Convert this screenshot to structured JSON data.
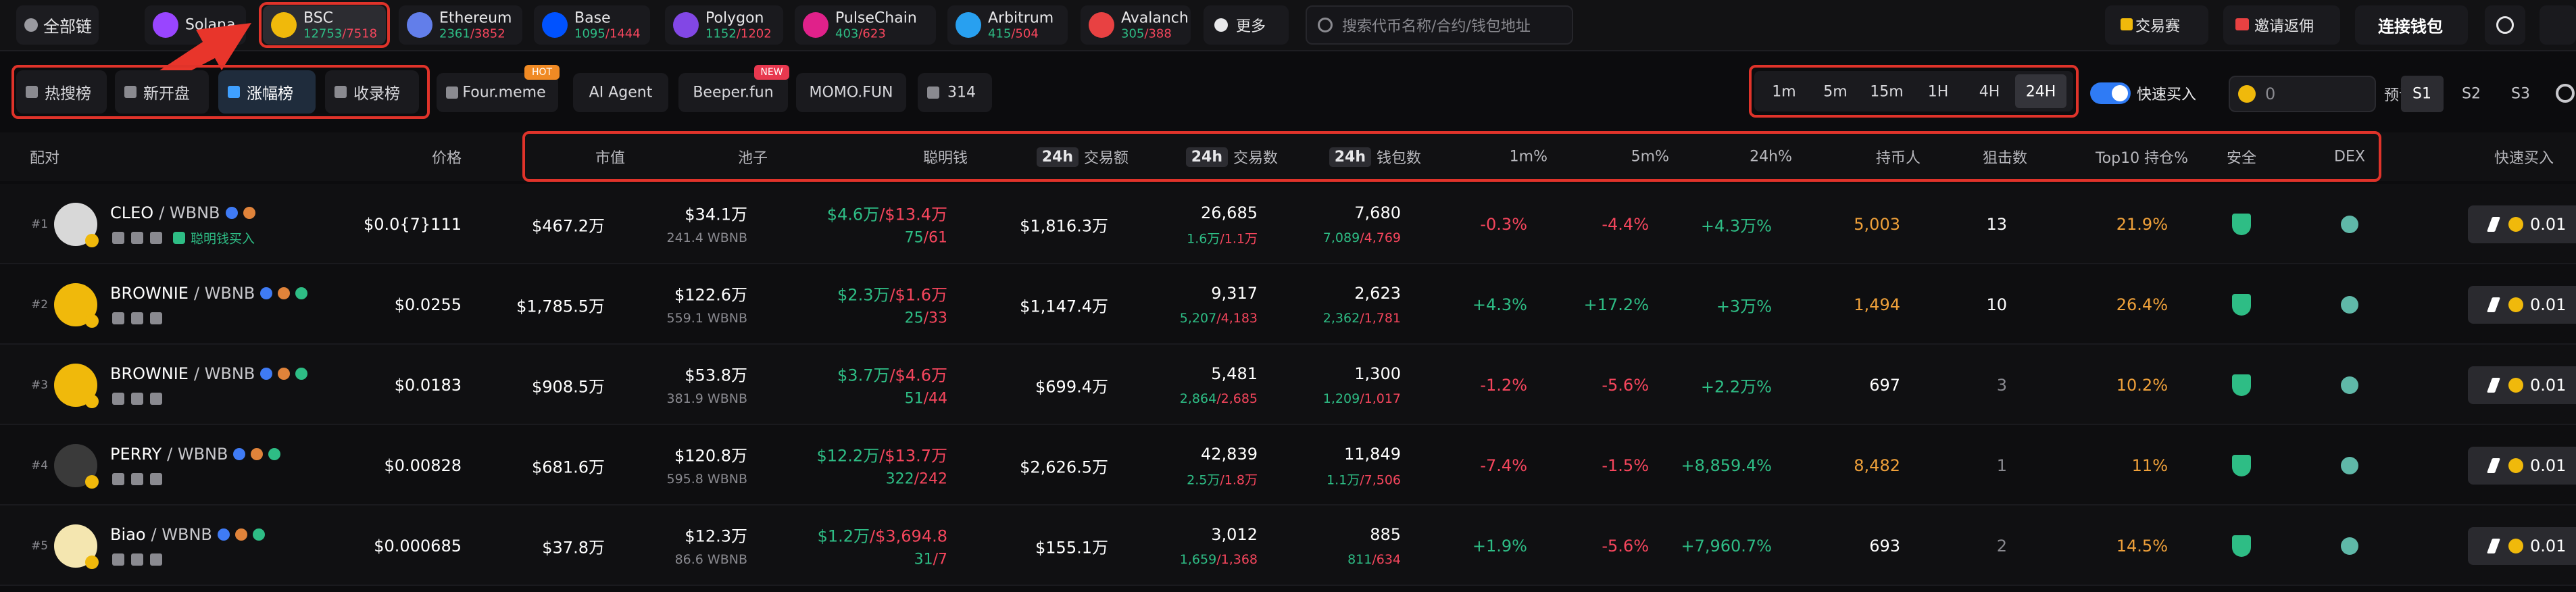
{
  "top_bar": {
    "all_chains": "全部链",
    "chains": [
      {
        "name": "Solana"
      },
      {
        "name": "BSC",
        "up": "12753",
        "down": "/7518"
      },
      {
        "name": "Ethereum",
        "up": "2361",
        "down": "/3852"
      },
      {
        "name": "Base",
        "up": "1095",
        "down": "/1444"
      },
      {
        "name": "Polygon",
        "up": "1152",
        "down": "/1202"
      },
      {
        "name": "PulseChain",
        "up": "403",
        "down": "/623"
      },
      {
        "name": "Arbitrum",
        "up": "415",
        "down": "/504"
      },
      {
        "name": "Avalanch",
        "up": "305",
        "down": "/388"
      }
    ],
    "more": "更多",
    "search_placeholder": "搜索代币名称/合约/钱包地址",
    "contest": "交易赛",
    "invite": "邀请返佣",
    "connect": "连接钱包"
  },
  "filter_bar": {
    "tabs": [
      "热搜榜",
      "新开盘",
      "涨幅榜",
      "收录榜"
    ],
    "platforms": [
      {
        "label": "Four.meme",
        "badge": "HOT"
      },
      {
        "label": "AI Agent"
      },
      {
        "label": "Beeper.fun",
        "badge": "NEW"
      },
      {
        "label": "MOMO.FUN"
      },
      {
        "label": "314"
      }
    ],
    "timeframes": [
      "1m",
      "5m",
      "15m",
      "1H",
      "4H",
      "24H"
    ],
    "quick_buy": "快速买入",
    "amount": "0",
    "preset": "预设",
    "presets": [
      "S1",
      "S2",
      "S3"
    ]
  },
  "table": {
    "headers": [
      {
        "text": "配对"
      },
      {
        "text": "价格"
      },
      {
        "text": "市值"
      },
      {
        "text": "池子"
      },
      {
        "text": "聪明钱"
      },
      {
        "badge": "24h",
        "text": "交易额"
      },
      {
        "badge": "24h",
        "text": "交易数"
      },
      {
        "badge": "24h",
        "text": "钱包数"
      },
      {
        "text": "1m%"
      },
      {
        "text": "5m%"
      },
      {
        "text": "24h%"
      },
      {
        "text": "持币人"
      },
      {
        "text": "狙击数"
      },
      {
        "text": "Top10 持仓%"
      },
      {
        "text": "安全"
      },
      {
        "text": "DEX"
      },
      {
        "text": "快速买入"
      }
    ],
    "rows": [
      {
        "rank": "#1",
        "name": "CLEO",
        "quote": "/ WBNB",
        "tag": "聪明钱买入",
        "price": "$0.0{7}111",
        "mcap": "$467.2万",
        "pool": "$34.1万",
        "pool_base": "241.4 WBNB",
        "smart_buy": "$4.6万",
        "smart_sell": "/$13.4万",
        "smart_buyers": "75",
        "smart_sellers": "/61",
        "volume": "$1,816.3万",
        "txs": "26,685",
        "buys": "1.6万",
        "sells": "/1.1万",
        "wallets": "7,680",
        "buy_wallets": "7,089",
        "sell_wallets": "/4,769",
        "change_1m": "-0.3%",
        "change_5m": "-4.4%",
        "change_24h": "+4.3万%",
        "holders": "5,003",
        "snipers": "13",
        "top10": "21.9%",
        "buy_amount": "0.01"
      },
      {
        "rank": "#2",
        "name": "BROWNIE",
        "quote": "/ WBNB",
        "price": "$0.0255",
        "mcap": "$1,785.5万",
        "pool": "$122.6万",
        "pool_base": "559.1 WBNB",
        "smart_buy": "$2.3万",
        "smart_sell": "/$1.6万",
        "smart_buyers": "25",
        "smart_sellers": "/33",
        "volume": "$1,147.4万",
        "txs": "9,317",
        "buys": "5,207",
        "sells": "/4,183",
        "wallets": "2,623",
        "buy_wallets": "2,362",
        "sell_wallets": "/1,781",
        "change_1m": "+4.3%",
        "change_5m": "+17.2%",
        "change_24h": "+3万%",
        "holders": "1,494",
        "snipers": "10",
        "top10": "26.4%",
        "buy_amount": "0.01"
      },
      {
        "rank": "#3",
        "name": "BROWNIE",
        "quote": "/ WBNB",
        "price": "$0.0183",
        "mcap": "$908.5万",
        "pool": "$53.8万",
        "pool_base": "381.9 WBNB",
        "smart_buy": "$3.7万",
        "smart_sell": "/$4.6万",
        "smart_buyers": "51",
        "smart_sellers": "/44",
        "volume": "$699.4万",
        "txs": "5,481",
        "buys": "2,864",
        "sells": "/2,685",
        "wallets": "1,300",
        "buy_wallets": "1,209",
        "sell_wallets": "/1,017",
        "change_1m": "-1.2%",
        "change_5m": "-5.6%",
        "change_24h": "+2.2万%",
        "holders": "697",
        "snipers": "3",
        "top10": "10.2%",
        "buy_amount": "0.01"
      },
      {
        "rank": "#4",
        "name": "PERRY",
        "quote": "/ WBNB",
        "price": "$0.00828",
        "mcap": "$681.6万",
        "pool": "$120.8万",
        "pool_base": "595.8 WBNB",
        "smart_buy": "$12.2万",
        "smart_sell": "/$13.7万",
        "smart_buyers": "322",
        "smart_sellers": "/242",
        "volume": "$2,626.5万",
        "txs": "42,839",
        "buys": "2.5万",
        "sells": "/1.8万",
        "wallets": "11,849",
        "buy_wallets": "1.1万",
        "sell_wallets": "/7,506",
        "change_1m": "-7.4%",
        "change_5m": "-1.5%",
        "change_24h": "+8,859.4%",
        "holders": "8,482",
        "snipers": "1",
        "top10": "11%",
        "buy_amount": "0.01"
      },
      {
        "rank": "#5",
        "name": "Biao",
        "quote": "/ WBNB",
        "price": "$0.000685",
        "mcap": "$37.8万",
        "pool": "$12.3万",
        "pool_base": "86.6 WBNB",
        "smart_buy": "$1.2万",
        "smart_sell": "/$3,694.8",
        "smart_buyers": "31",
        "smart_sellers": "/7",
        "volume": "$155.1万",
        "txs": "3,012",
        "buys": "1,659",
        "sells": "/1,368",
        "wallets": "885",
        "buy_wallets": "811",
        "sell_wallets": "/634",
        "change_1m": "+1.9%",
        "change_5m": "-5.6%",
        "change_24h": "+7,960.7%",
        "holders": "693",
        "snipers": "2",
        "top10": "14.5%",
        "buy_amount": "0.01"
      }
    ]
  }
}
